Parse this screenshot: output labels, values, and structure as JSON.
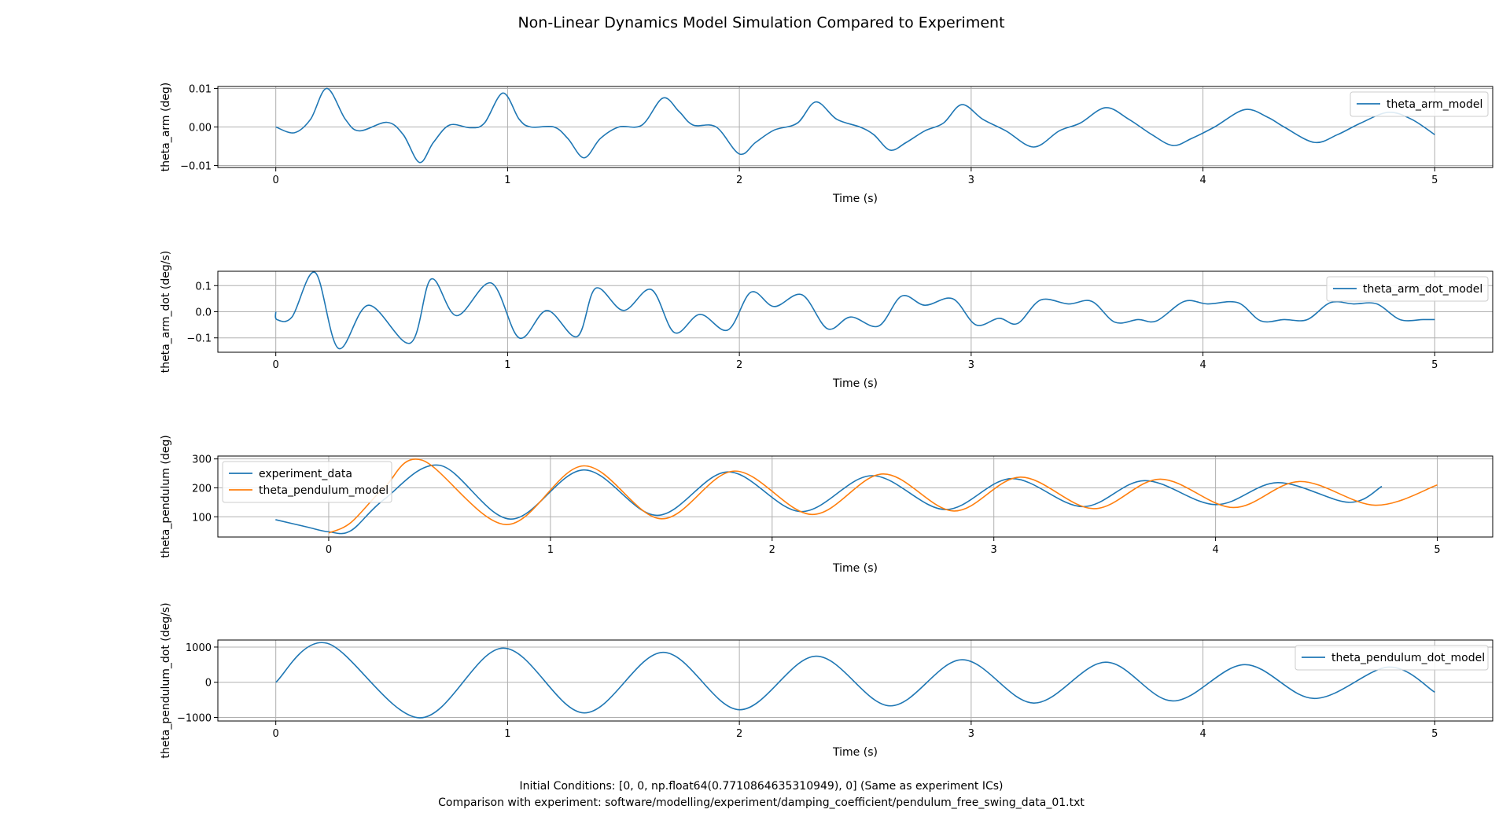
{
  "figure": {
    "title": "Non-Linear Dynamics Model Simulation Compared to Experiment",
    "footer_line1": "Initial Conditions: [0, 0, np.float64(0.7710864635310949), 0] (Same as experiment ICs)",
    "footer_line2": "Comparison with experiment: software/modelling/experiment/damping_coefficient/pendulum_free_swing_data_01.txt"
  },
  "colors": {
    "blue": "#1f77b4",
    "orange": "#ff7f0e",
    "grid": "#b0b0b0",
    "axes": "#000000"
  },
  "chart_data": [
    {
      "type": "line",
      "id": "theta_arm",
      "xlabel": "Time (s)",
      "ylabel": "theta_arm (deg)",
      "xlim": [
        -0.25,
        5.25
      ],
      "ylim": [
        -0.0105,
        0.0105
      ],
      "xticks": [
        0,
        1,
        2,
        3,
        4,
        5
      ],
      "yticks": [
        -0.01,
        0.0,
        0.01
      ],
      "ytick_labels": [
        "−0.01",
        "0.00",
        "0.01"
      ],
      "grid": true,
      "legend": "upper right",
      "series": [
        {
          "name": "theta_arm_model",
          "color": "#1f77b4",
          "points": [
            [
              0,
              0
            ],
            [
              0.08,
              -0.0015
            ],
            [
              0.15,
              0.002
            ],
            [
              0.22,
              0.01
            ],
            [
              0.3,
              0.002
            ],
            [
              0.36,
              -0.001
            ],
            [
              0.48,
              0.0012
            ],
            [
              0.55,
              -0.002
            ],
            [
              0.62,
              -0.0092
            ],
            [
              0.68,
              -0.004
            ],
            [
              0.75,
              0.0005
            ],
            [
              0.84,
              -0.0002
            ],
            [
              0.9,
              0.001
            ],
            [
              0.98,
              0.0088
            ],
            [
              1.05,
              0.002
            ],
            [
              1.1,
              0.0
            ],
            [
              1.2,
              0.0
            ],
            [
              1.26,
              -0.003
            ],
            [
              1.33,
              -0.008
            ],
            [
              1.4,
              -0.003
            ],
            [
              1.48,
              0.0
            ],
            [
              1.58,
              0.0005
            ],
            [
              1.67,
              0.0075
            ],
            [
              1.74,
              0.004
            ],
            [
              1.8,
              0.0005
            ],
            [
              1.9,
              0.0
            ],
            [
              2.0,
              -0.007
            ],
            [
              2.07,
              -0.004
            ],
            [
              2.15,
              -0.0008
            ],
            [
              2.25,
              0.001
            ],
            [
              2.33,
              0.0065
            ],
            [
              2.42,
              0.002
            ],
            [
              2.52,
              0.0
            ],
            [
              2.58,
              -0.002
            ],
            [
              2.65,
              -0.006
            ],
            [
              2.72,
              -0.004
            ],
            [
              2.8,
              -0.001
            ],
            [
              2.88,
              0.001
            ],
            [
              2.96,
              0.0058
            ],
            [
              3.05,
              0.002
            ],
            [
              3.15,
              -0.001
            ],
            [
              3.27,
              -0.0052
            ],
            [
              3.38,
              -0.001
            ],
            [
              3.47,
              0.001
            ],
            [
              3.58,
              0.005
            ],
            [
              3.68,
              0.002
            ],
            [
              3.78,
              -0.002
            ],
            [
              3.87,
              -0.0048
            ],
            [
              3.95,
              -0.003
            ],
            [
              4.05,
              0.0
            ],
            [
              4.18,
              0.0045
            ],
            [
              4.28,
              0.0025
            ],
            [
              4.35,
              0.0
            ],
            [
              4.48,
              -0.004
            ],
            [
              4.58,
              -0.002
            ],
            [
              4.68,
              0.001
            ],
            [
              4.8,
              0.0038
            ],
            [
              4.9,
              0.002
            ],
            [
              5.0,
              -0.002
            ]
          ]
        }
      ]
    },
    {
      "type": "line",
      "id": "theta_arm_dot",
      "xlabel": "Time (s)",
      "ylabel": "theta_arm_dot (deg/s)",
      "xlim": [
        -0.25,
        5.25
      ],
      "ylim": [
        -0.155,
        0.155
      ],
      "xticks": [
        0,
        1,
        2,
        3,
        4,
        5
      ],
      "yticks": [
        -0.1,
        0.0,
        0.1
      ],
      "ytick_labels": [
        "−0.1",
        "0.0",
        "0.1"
      ],
      "grid": true,
      "legend": "upper right",
      "series": [
        {
          "name": "theta_arm_dot_model",
          "color": "#1f77b4",
          "points": [
            [
              0,
              0
            ],
            [
              0.005,
              -0.03
            ],
            [
              0.07,
              -0.02
            ],
            [
              0.17,
              0.15
            ],
            [
              0.27,
              -0.14
            ],
            [
              0.4,
              0.025
            ],
            [
              0.58,
              -0.12
            ],
            [
              0.67,
              0.125
            ],
            [
              0.78,
              -0.015
            ],
            [
              0.93,
              0.11
            ],
            [
              1.05,
              -0.1
            ],
            [
              1.17,
              0.005
            ],
            [
              1.3,
              -0.095
            ],
            [
              1.38,
              0.09
            ],
            [
              1.5,
              0.005
            ],
            [
              1.62,
              0.085
            ],
            [
              1.72,
              -0.08
            ],
            [
              1.83,
              -0.01
            ],
            [
              1.95,
              -0.07
            ],
            [
              2.05,
              0.075
            ],
            [
              2.15,
              0.02
            ],
            [
              2.27,
              0.065
            ],
            [
              2.38,
              -0.065
            ],
            [
              2.48,
              -0.02
            ],
            [
              2.6,
              -0.055
            ],
            [
              2.7,
              0.06
            ],
            [
              2.8,
              0.025
            ],
            [
              2.92,
              0.05
            ],
            [
              3.02,
              -0.05
            ],
            [
              3.12,
              -0.025
            ],
            [
              3.2,
              -0.045
            ],
            [
              3.3,
              0.045
            ],
            [
              3.42,
              0.03
            ],
            [
              3.52,
              0.04
            ],
            [
              3.62,
              -0.04
            ],
            [
              3.72,
              -0.03
            ],
            [
              3.8,
              -0.035
            ],
            [
              3.92,
              0.04
            ],
            [
              4.02,
              0.03
            ],
            [
              4.15,
              0.035
            ],
            [
              4.25,
              -0.035
            ],
            [
              4.35,
              -0.03
            ],
            [
              4.45,
              -0.03
            ],
            [
              4.55,
              0.035
            ],
            [
              4.65,
              0.03
            ],
            [
              4.75,
              0.03
            ],
            [
              4.85,
              -0.03
            ],
            [
              4.95,
              -0.03
            ],
            [
              5.0,
              -0.03
            ]
          ]
        }
      ]
    },
    {
      "type": "line",
      "id": "theta_pendulum",
      "xlabel": "Time (s)",
      "ylabel": "theta_pendulum (deg)",
      "xlim": [
        -0.5,
        5.25
      ],
      "ylim": [
        30,
        310
      ],
      "xticks": [
        0,
        1,
        2,
        3,
        4,
        5
      ],
      "yticks": [
        100,
        200,
        300
      ],
      "ytick_labels": [
        "100",
        "200",
        "300"
      ],
      "grid": true,
      "legend": "upper left",
      "series": [
        {
          "name": "experiment_data",
          "color": "#1f77b4",
          "points": [
            [
              -0.24,
              90
            ],
            [
              -0.1,
              65
            ],
            [
              0.0,
              48
            ],
            [
              0.1,
              52
            ],
            [
              0.25,
              160
            ],
            [
              0.5,
              278
            ],
            [
              0.82,
              92
            ],
            [
              1.15,
              262
            ],
            [
              1.48,
              105
            ],
            [
              1.8,
              255
            ],
            [
              2.13,
              118
            ],
            [
              2.45,
              242
            ],
            [
              2.78,
              125
            ],
            [
              3.08,
              232
            ],
            [
              3.4,
              135
            ],
            [
              3.68,
              225
            ],
            [
              4.0,
              142
            ],
            [
              4.28,
              218
            ],
            [
              4.6,
              150
            ],
            [
              4.75,
              205
            ]
          ]
        },
        {
          "name": "theta_pendulum_model",
          "color": "#ff7f0e",
          "points": [
            [
              0,
              44
            ],
            [
              0.1,
              80
            ],
            [
              0.25,
              200
            ],
            [
              0.42,
              296
            ],
            [
              0.8,
              73
            ],
            [
              1.15,
              276
            ],
            [
              1.5,
              93
            ],
            [
              1.83,
              258
            ],
            [
              2.18,
              108
            ],
            [
              2.5,
              248
            ],
            [
              2.82,
              120
            ],
            [
              3.12,
              237
            ],
            [
              3.45,
              128
            ],
            [
              3.75,
              230
            ],
            [
              4.08,
              132
            ],
            [
              4.38,
              222
            ],
            [
              4.72,
              140
            ],
            [
              5.0,
              210
            ]
          ]
        }
      ]
    },
    {
      "type": "line",
      "id": "theta_pendulum_dot",
      "xlabel": "Time (s)",
      "ylabel": "theta_pendulum_dot (deg/s)",
      "xlim": [
        -0.25,
        5.25
      ],
      "ylim": [
        -1100,
        1200
      ],
      "xticks": [
        0,
        1,
        2,
        3,
        4,
        5
      ],
      "yticks": [
        -1000,
        0,
        1000
      ],
      "ytick_labels": [
        "−1000",
        "0",
        "1000"
      ],
      "grid": true,
      "legend": "upper right",
      "series": [
        {
          "name": "theta_pendulum_dot_model",
          "color": "#1f77b4",
          "points": [
            [
              0,
              0
            ],
            [
              0.22,
              1110
            ],
            [
              0.62,
              -1010
            ],
            [
              0.98,
              970
            ],
            [
              1.33,
              -870
            ],
            [
              1.67,
              850
            ],
            [
              2.0,
              -780
            ],
            [
              2.33,
              740
            ],
            [
              2.65,
              -670
            ],
            [
              2.96,
              640
            ],
            [
              3.27,
              -590
            ],
            [
              3.58,
              570
            ],
            [
              3.87,
              -530
            ],
            [
              4.18,
              500
            ],
            [
              4.48,
              -460
            ],
            [
              4.8,
              430
            ],
            [
              5.0,
              -280
            ]
          ]
        }
      ]
    }
  ]
}
